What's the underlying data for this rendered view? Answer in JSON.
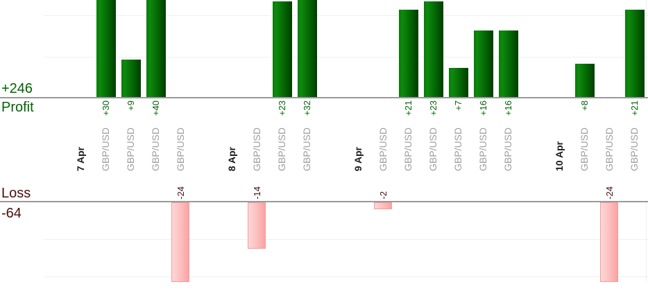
{
  "chart_data": {
    "type": "bar",
    "title": "",
    "xlabel": "",
    "ylabel": "",
    "legend": null,
    "grid": true,
    "profit_axis": {
      "label": "Profit",
      "total": "+246",
      "gridline_values": [
        10,
        20
      ]
    },
    "loss_axis": {
      "label": "Loss",
      "total": "-64",
      "gridline_values": [
        -10,
        -20
      ]
    },
    "groups": [
      {
        "date": "7 Apr",
        "trades": [
          {
            "symbol": "GBP/USD",
            "value": 30,
            "label": "+30"
          },
          {
            "symbol": "GBP/USD",
            "value": 9,
            "label": "+9"
          },
          {
            "symbol": "GBP/USD",
            "value": 40,
            "label": "+40"
          },
          {
            "symbol": "GBP/USD",
            "value": -24,
            "label": "-24"
          }
        ]
      },
      {
        "date": "8 Apr",
        "trades": [
          {
            "symbol": "GBP/USD",
            "value": -14,
            "label": "-14"
          },
          {
            "symbol": "GBP/USD",
            "value": 23,
            "label": "+23"
          },
          {
            "symbol": "GBP/USD",
            "value": 32,
            "label": "+32"
          }
        ]
      },
      {
        "date": "9 Apr",
        "trades": [
          {
            "symbol": "GBP/USD",
            "value": -2,
            "label": "-2"
          },
          {
            "symbol": "GBP/USD",
            "value": 21,
            "label": "+21"
          },
          {
            "symbol": "GBP/USD",
            "value": 23,
            "label": "+23"
          },
          {
            "symbol": "GBP/USD",
            "value": 7,
            "label": "+7"
          },
          {
            "symbol": "GBP/USD",
            "value": 16,
            "label": "+16"
          },
          {
            "symbol": "GBP/USD",
            "value": 16,
            "label": "+16"
          }
        ]
      },
      {
        "date": "10 Apr",
        "trades": [
          {
            "symbol": "GBP/USD",
            "value": 8,
            "label": "+8"
          },
          {
            "symbol": "GBP/USD",
            "value": -24,
            "label": "-24"
          },
          {
            "symbol": "GBP/USD",
            "value": 21,
            "label": "+21"
          }
        ]
      }
    ],
    "colors": {
      "profit_bar": "#066a06",
      "profit_text": "#006400",
      "loss_bar": "#fbb5b5",
      "loss_text": "#4a0d0d",
      "symbol_text": "#9e9e9e",
      "date_text": "#1a1a1a",
      "axis_line": "#999999",
      "gridline": "#f0f0f0"
    }
  }
}
